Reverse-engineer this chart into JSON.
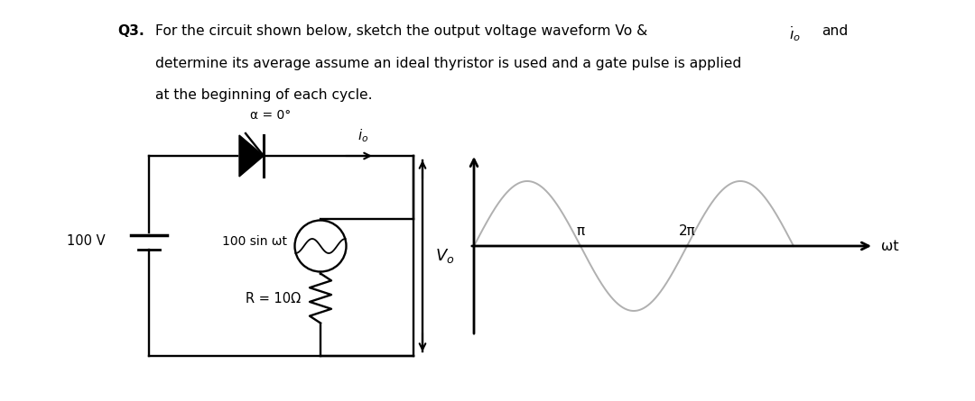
{
  "title_bold": "Q3.",
  "line1_rest": "  For the circuit shown below, sketch the output voltage waveform Vo & ",
  "line1_io": "io",
  "line1_end": " and",
  "line2": "    determine its average assume an ideal thyristor is used and a gate pulse is applied",
  "line3": "    at the beginning of each cycle.",
  "alpha_label": "α = 0°",
  "io_label": "i₀",
  "source_label": "100 sin ωt",
  "r_label": "R = 10Ω",
  "vo_label": "V₀",
  "v_label": "100 V",
  "pi_label": "π",
  "twopi_label": "2π",
  "ot_label": "ωt",
  "bg_color": "#ffffff",
  "text_color": "#000000",
  "waveform_color": "#b0b0b0",
  "axis_color": "#000000",
  "circuit_color": "#000000"
}
